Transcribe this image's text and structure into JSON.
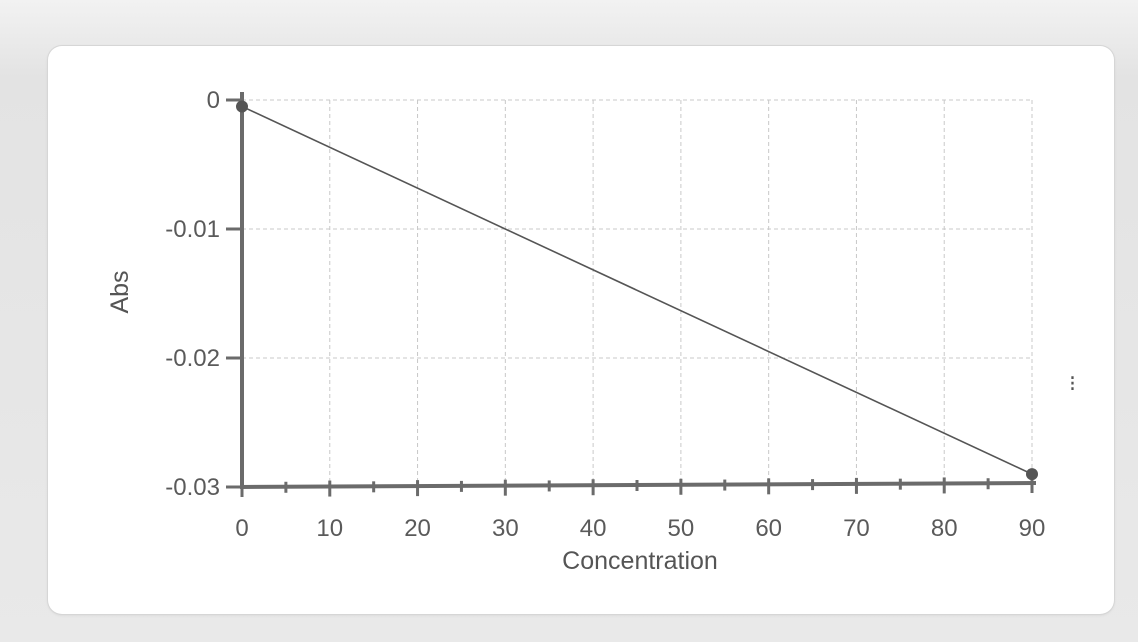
{
  "chart_data": {
    "type": "line",
    "xlabel": "Concentration",
    "ylabel": "Abs",
    "xlim": [
      0,
      90
    ],
    "ylim": [
      -0.03,
      0
    ],
    "x_ticks": [
      0,
      10,
      20,
      30,
      40,
      50,
      60,
      70,
      80,
      90
    ],
    "y_ticks": [
      0,
      -0.01,
      -0.02,
      -0.03
    ],
    "x_tick_labels": [
      "0",
      "10",
      "20",
      "30",
      "40",
      "50",
      "60",
      "70",
      "80",
      "90"
    ],
    "y_tick_labels": [
      "0",
      "-0.01",
      "-0.02",
      "-0.03"
    ],
    "grid": true,
    "series": [
      {
        "x": [
          0,
          90
        ],
        "y": [
          -0.0005,
          -0.029
        ]
      }
    ],
    "colors": {
      "line": "#555555",
      "axis": "#6b6b6b",
      "grid": "#c8c8c8",
      "point": "#555555"
    }
  },
  "side_mark": "⁝"
}
